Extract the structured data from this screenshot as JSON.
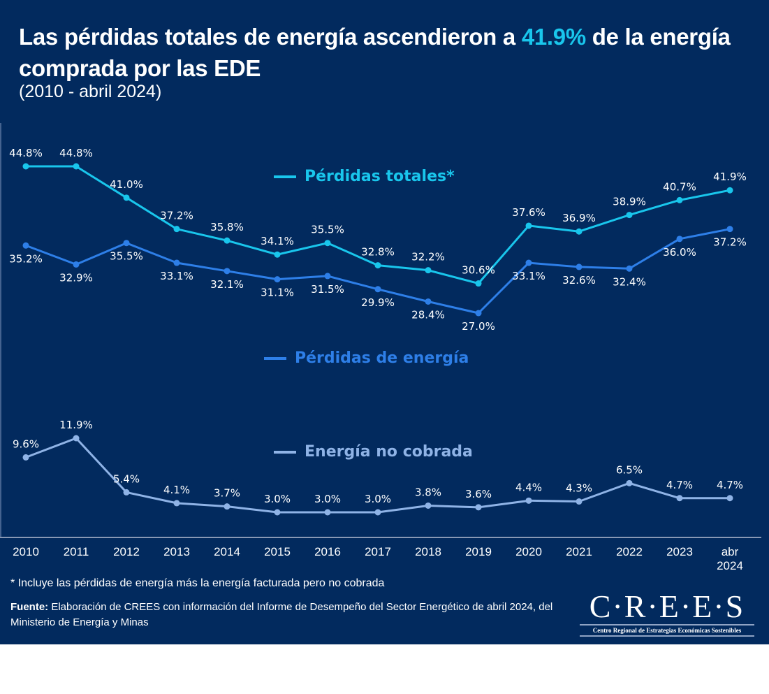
{
  "header": {
    "title_pre": "Las pérdidas totales de energía ascendieron a ",
    "title_highlight": "41.9%",
    "title_post": " de la energía comprada por las EDE",
    "subtitle": "(2010 - abril 2024)",
    "highlight_color": "#19c6ec"
  },
  "chart_data": {
    "type": "line",
    "title": "Las pérdidas totales de energía ascendieron a 41.9% de la energía comprada por las EDE",
    "subtitle": "(2010 - abril 2024)",
    "xlabel": "",
    "ylabel": "",
    "ylim": [
      0,
      47
    ],
    "grid": false,
    "categories": [
      "2010",
      "2011",
      "2012",
      "2013",
      "2014",
      "2015",
      "2016",
      "2017",
      "2018",
      "2019",
      "2020",
      "2021",
      "2022",
      "2023",
      "abr 2024"
    ],
    "category_lines": [
      [
        "2010"
      ],
      [
        "2011"
      ],
      [
        "2012"
      ],
      [
        "2013"
      ],
      [
        "2014"
      ],
      [
        "2015"
      ],
      [
        "2016"
      ],
      [
        "2017"
      ],
      [
        "2018"
      ],
      [
        "2019"
      ],
      [
        "2020"
      ],
      [
        "2021"
      ],
      [
        "2022"
      ],
      [
        "2023"
      ],
      [
        "abr",
        "2024"
      ]
    ],
    "series": [
      {
        "name": "Pérdidas totales*",
        "color": "#19c6ec",
        "values": [
          44.8,
          44.8,
          41.0,
          37.2,
          35.8,
          34.1,
          35.5,
          32.8,
          32.2,
          30.6,
          37.6,
          36.9,
          38.9,
          40.7,
          41.9
        ],
        "labels": [
          "44.8%",
          "44.8%",
          "41.0%",
          "37.2%",
          "35.8%",
          "34.1%",
          "35.5%",
          "32.8%",
          "32.2%",
          "30.6%",
          "37.6%",
          "36.9%",
          "38.9%",
          "40.7%",
          "41.9%"
        ],
        "label_position": "above"
      },
      {
        "name": "Pérdidas de energía",
        "color": "#2e7fe8",
        "values": [
          35.2,
          32.9,
          35.5,
          33.1,
          32.1,
          31.1,
          31.5,
          29.9,
          28.4,
          27.0,
          33.1,
          32.6,
          32.4,
          36.0,
          37.2
        ],
        "labels": [
          "35.2%",
          "32.9%",
          "35.5%",
          "33.1%",
          "32.1%",
          "31.1%",
          "31.5%",
          "29.9%",
          "28.4%",
          "27.0%",
          "33.1%",
          "32.6%",
          "32.4%",
          "36.0%",
          "37.2%"
        ],
        "label_position": "below"
      },
      {
        "name": "Energía no cobrada",
        "color": "#8fb3e6",
        "values": [
          9.6,
          11.9,
          5.4,
          4.1,
          3.7,
          3.0,
          3.0,
          3.0,
          3.8,
          3.6,
          4.4,
          4.3,
          6.5,
          4.7,
          4.7
        ],
        "labels": [
          "9.6%",
          "11.9%",
          "5.4%",
          "4.1%",
          "3.7%",
          "3.0%",
          "3.0%",
          "3.0%",
          "3.8%",
          "3.6%",
          "4.4%",
          "4.3%",
          "6.5%",
          "4.7%",
          "4.7%"
        ],
        "label_position": "above"
      }
    ],
    "legend": [
      {
        "label": "Pérdidas totales*",
        "color": "#19c6ec",
        "placement": "upper-center"
      },
      {
        "label": "Pérdidas de energía",
        "color": "#2e7fe8",
        "placement": "center"
      },
      {
        "label": "Energía no cobrada",
        "color": "#8fb3e6",
        "placement": "lower-center"
      }
    ]
  },
  "footer": {
    "footnote": "* Incluye las pérdidas de energía más la energía facturada pero no cobrada",
    "source_label": "Fuente:",
    "source_text": " Elaboración de CREES con información del Informe de Desempeño del Sector Energético de abril 2024, del Ministerio de Energía y Minas"
  },
  "logo": {
    "name": "C·R·E·E·S",
    "tagline": "Centro Regional de Estrategias Económicas Sostenibles"
  }
}
